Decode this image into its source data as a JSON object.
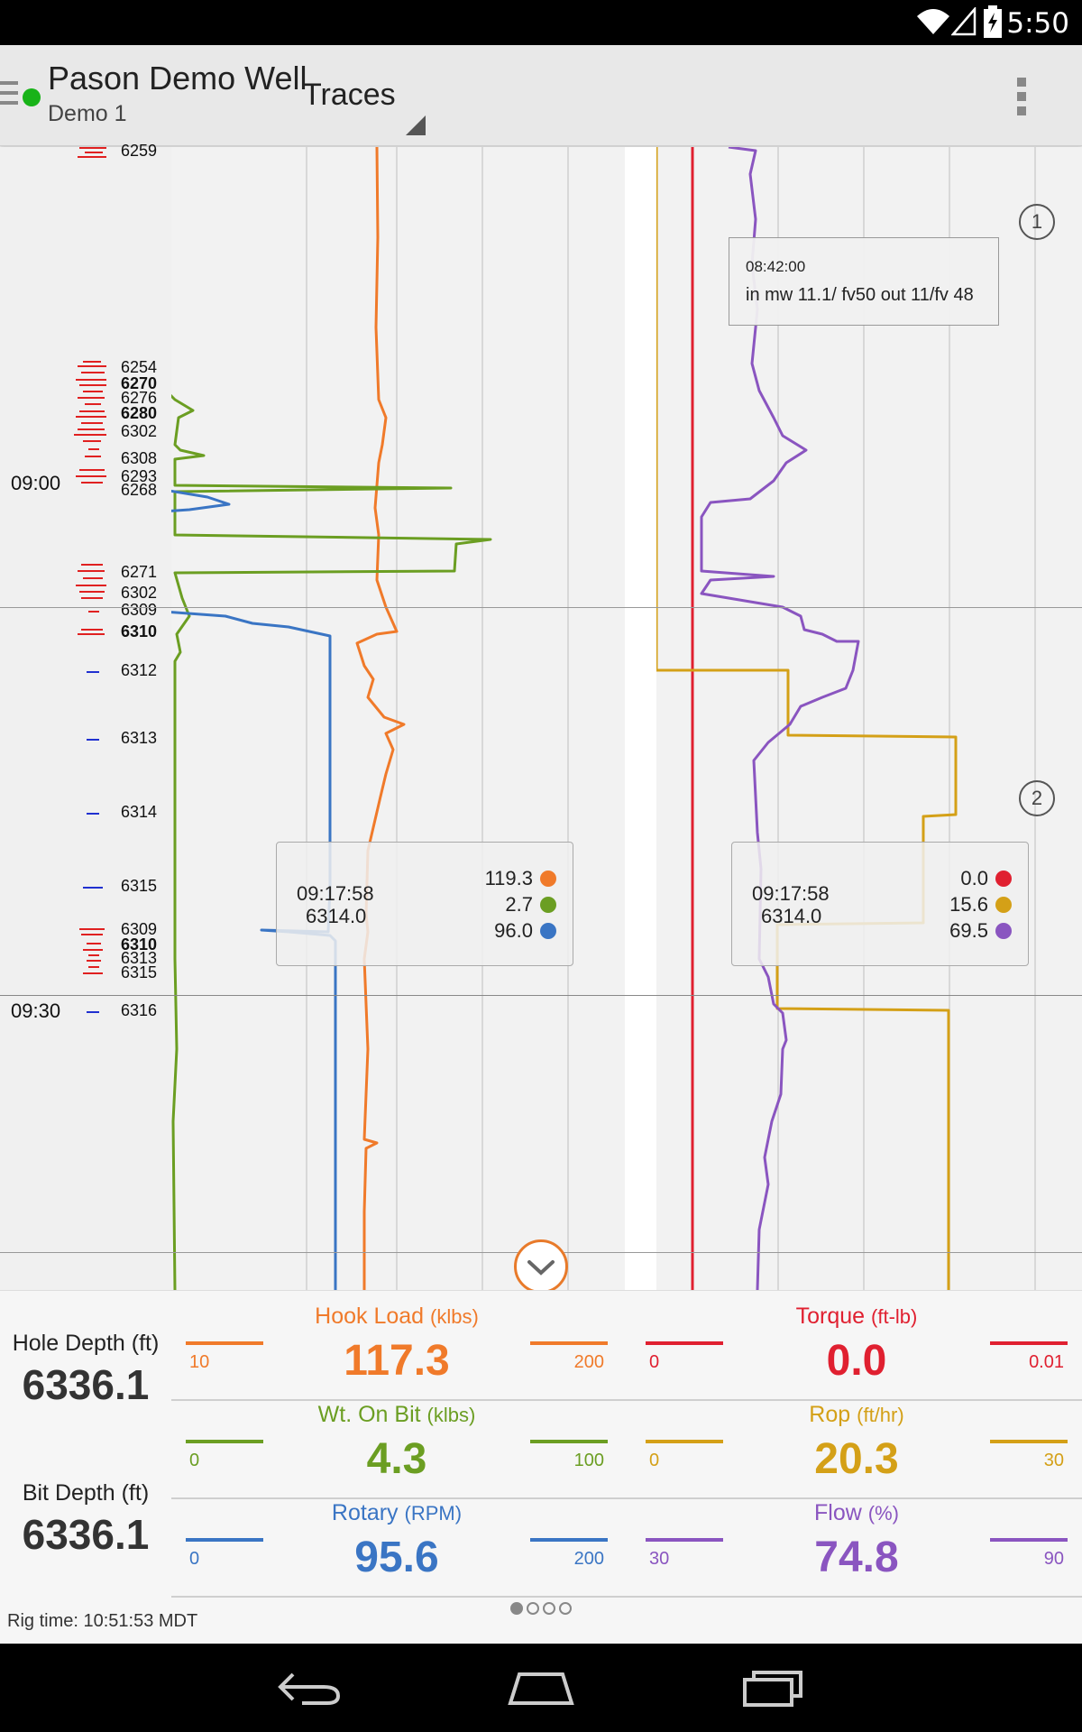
{
  "status_bar": {
    "time": "5:50"
  },
  "app_bar": {
    "well_name": "Pason Demo Well",
    "subtitle": "Demo 1",
    "view_label": "Traces",
    "connection_color": "#18b318"
  },
  "depth_column": {
    "labels": [
      {
        "text": "6259",
        "bold": false
      },
      {
        "text": "6254",
        "bold": false
      },
      {
        "text": "6270",
        "bold": true
      },
      {
        "text": "6276",
        "bold": false
      },
      {
        "text": "6280",
        "bold": true
      },
      {
        "text": "6302",
        "bold": false
      },
      {
        "text": "6308",
        "bold": false
      },
      {
        "text": "6293",
        "bold": false
      },
      {
        "text": "6268",
        "bold": false
      },
      {
        "text": "6271",
        "bold": false
      },
      {
        "text": "6302",
        "bold": false
      },
      {
        "text": "6309",
        "bold": false
      },
      {
        "text": "6310",
        "bold": true
      },
      {
        "text": "6312",
        "bold": false
      },
      {
        "text": "6313",
        "bold": false
      },
      {
        "text": "6314",
        "bold": false
      },
      {
        "text": "6315",
        "bold": false
      },
      {
        "text": "6309",
        "bold": false
      },
      {
        "text": "6310",
        "bold": true
      },
      {
        "text": "6313",
        "bold": false
      },
      {
        "text": "6315",
        "bold": false
      },
      {
        "text": "6316",
        "bold": false
      }
    ],
    "time_labels": [
      "09:00",
      "09:30"
    ]
  },
  "chart_data": [
    {
      "type": "line",
      "series": [
        {
          "name": "Hook Load",
          "color": "#f07a2a"
        },
        {
          "name": "Wt. On Bit",
          "color": "#6b9e22"
        },
        {
          "name": "Rotary",
          "color": "#3a75c4"
        }
      ]
    },
    {
      "type": "line",
      "series": [
        {
          "name": "Torque",
          "color": "#e02030"
        },
        {
          "name": "Rop",
          "color": "#d4a017"
        },
        {
          "name": "Flow",
          "color": "#8a55c0"
        }
      ]
    }
  ],
  "readout_left": {
    "time": "09:17:58",
    "depth": "6314.0",
    "values": [
      {
        "value": "119.3",
        "color": "#f07a2a"
      },
      {
        "value": "2.7",
        "color": "#6b9e22"
      },
      {
        "value": "96.0",
        "color": "#3a75c4"
      }
    ]
  },
  "readout_right": {
    "time": "09:17:58",
    "depth": "6314.0",
    "values": [
      {
        "value": "0.0",
        "color": "#e02030"
      },
      {
        "value": "15.6",
        "color": "#d4a017"
      },
      {
        "value": "69.5",
        "color": "#8a55c0"
      }
    ]
  },
  "comment": {
    "time": "08:42:00",
    "text": "in mw 11.1/ fv50 out 11/fv 48"
  },
  "markers": [
    "1",
    "2"
  ],
  "panel": {
    "hole_depth_label": "Hole Depth (ft)",
    "hole_depth_value": "6336.1",
    "bit_depth_label": "Bit Depth (ft)",
    "bit_depth_value": "6336.1",
    "gauges": [
      {
        "name": "Hook Load",
        "unit": "(klbs)",
        "value": "117.3",
        "min": "10",
        "max": "200",
        "color": "#f07a2a"
      },
      {
        "name": "Torque",
        "unit": "(ft-lb)",
        "value": "0.0",
        "min": "0",
        "max": "0.01",
        "color": "#e02030"
      },
      {
        "name": "Wt. On Bit",
        "unit": "(klbs)",
        "value": "4.3",
        "min": "0",
        "max": "100",
        "color": "#6b9e22"
      },
      {
        "name": "Rop",
        "unit": "(ft/hr)",
        "value": "20.3",
        "min": "0",
        "max": "30",
        "color": "#d4a017"
      },
      {
        "name": "Rotary",
        "unit": "(RPM)",
        "value": "95.6",
        "min": "0",
        "max": "200",
        "color": "#3a75c4"
      },
      {
        "name": "Flow",
        "unit": "(%)",
        "value": "74.8",
        "min": "30",
        "max": "90",
        "color": "#8a55c0"
      }
    ],
    "rig_time": "Rig time: 10:51:53 MDT"
  }
}
